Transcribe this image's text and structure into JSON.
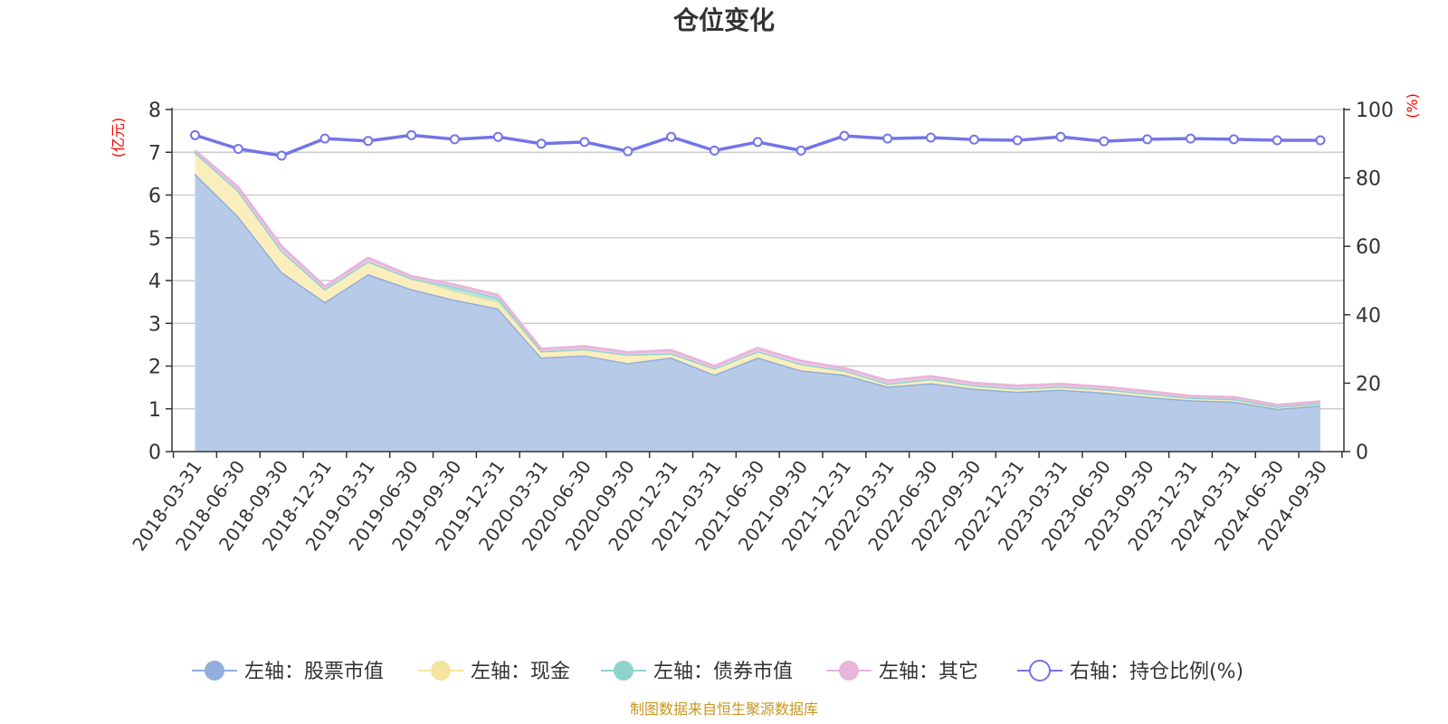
{
  "chart_data": {
    "type": "area",
    "title": "仓位变化",
    "left_unit": "(亿元)",
    "right_unit": "(%)",
    "source": "制图数据来自恒生聚源数据库",
    "x": [
      "2018-03-31",
      "2018-06-30",
      "2018-09-30",
      "2018-12-31",
      "2019-03-31",
      "2019-06-30",
      "2019-09-30",
      "2019-12-31",
      "2020-03-31",
      "2020-06-30",
      "2020-09-30",
      "2020-12-31",
      "2021-03-31",
      "2021-06-30",
      "2021-09-30",
      "2021-12-31",
      "2022-03-31",
      "2022-06-30",
      "2022-09-30",
      "2022-12-31",
      "2023-03-31",
      "2023-06-30",
      "2023-09-30",
      "2023-12-31",
      "2024-03-31",
      "2024-06-30",
      "2024-09-30"
    ],
    "y_left": {
      "min": 0,
      "max": 8,
      "ticks": [
        0,
        1,
        2,
        3,
        4,
        5,
        6,
        7,
        8
      ]
    },
    "y_right": {
      "min": 0,
      "max": 100,
      "ticks": [
        0,
        20,
        40,
        60,
        80,
        100
      ]
    },
    "series": [
      {
        "name": "左轴：股票市值",
        "axis": "left",
        "kind": "area",
        "stack": true,
        "color": "#91aedc",
        "fill": "#b7cbe9",
        "values": [
          6.5,
          5.5,
          4.2,
          3.5,
          4.15,
          3.8,
          3.55,
          3.35,
          2.2,
          2.25,
          2.07,
          2.2,
          1.8,
          2.2,
          1.9,
          1.8,
          1.52,
          1.6,
          1.47,
          1.4,
          1.45,
          1.38,
          1.28,
          1.2,
          1.17,
          1.0,
          1.08
        ]
      },
      {
        "name": "左轴：现金",
        "axis": "left",
        "kind": "area",
        "stack": true,
        "color": "#f5e3a0",
        "fill": "#fbeebd",
        "values": [
          0.5,
          0.6,
          0.5,
          0.3,
          0.3,
          0.25,
          0.2,
          0.15,
          0.15,
          0.15,
          0.2,
          0.1,
          0.15,
          0.15,
          0.15,
          0.1,
          0.07,
          0.1,
          0.08,
          0.08,
          0.07,
          0.08,
          0.08,
          0.06,
          0.06,
          0.05,
          0.05
        ]
      },
      {
        "name": "左轴：债券市值",
        "axis": "left",
        "kind": "area",
        "stack": true,
        "color": "#8fd3cf",
        "fill": "#b3e3df",
        "values": [
          0,
          0,
          0,
          0,
          0,
          0,
          0.1,
          0.1,
          0,
          0,
          0,
          0,
          0,
          0,
          0,
          0,
          0,
          0,
          0,
          0,
          0,
          0,
          0,
          0,
          0,
          0,
          0
        ]
      },
      {
        "name": "左轴：其它",
        "axis": "left",
        "kind": "area",
        "stack": true,
        "color": "#e8b5db",
        "fill": "#f0cce6",
        "values": [
          0.04,
          0.08,
          0.1,
          0.06,
          0.08,
          0.05,
          0.05,
          0.06,
          0.05,
          0.06,
          0.05,
          0.07,
          0.05,
          0.07,
          0.07,
          0.05,
          0.07,
          0.06,
          0.05,
          0.06,
          0.06,
          0.05,
          0.05,
          0.04,
          0.04,
          0.04,
          0.04
        ]
      },
      {
        "name": "右轴：持仓比例(%)",
        "axis": "right",
        "kind": "line",
        "color": "#7375e8",
        "values": [
          92.5,
          88.5,
          86.5,
          91.5,
          90.8,
          92.5,
          91.3,
          92.0,
          90.0,
          90.5,
          87.8,
          92.0,
          88.0,
          90.5,
          88.0,
          92.3,
          91.5,
          91.8,
          91.2,
          91.0,
          92.0,
          90.7,
          91.3,
          91.5,
          91.3,
          91.0,
          91.0
        ]
      }
    ],
    "legend_position": "bottom",
    "grid": true
  }
}
